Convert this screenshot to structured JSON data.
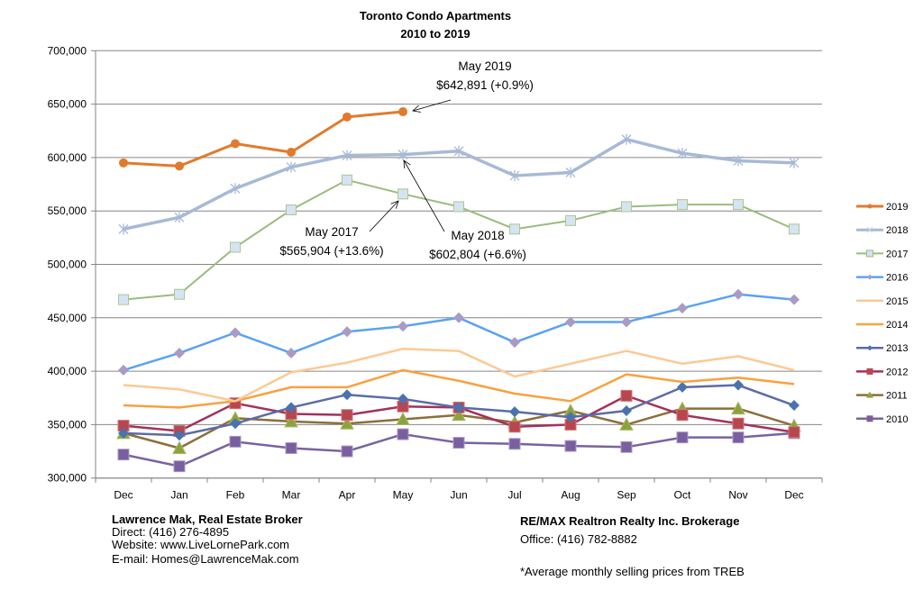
{
  "chart_data": {
    "type": "line",
    "title": "Toronto Condo Apartments",
    "subtitle": "2010 to 2019",
    "xlabel": "",
    "ylabel": "",
    "categories": [
      "Dec",
      "Jan",
      "Feb",
      "Mar",
      "Apr",
      "May",
      "Jun",
      "Jul",
      "Aug",
      "Sep",
      "Oct",
      "Nov",
      "Dec"
    ],
    "ylim": [
      300000,
      700000
    ],
    "yticks": [
      300000,
      350000,
      400000,
      450000,
      500000,
      550000,
      600000,
      650000,
      700000
    ],
    "ytick_labels": [
      "300,000",
      "350,000",
      "400,000",
      "450,000",
      "500,000",
      "550,000",
      "600,000",
      "650,000",
      "700,000"
    ],
    "grid": true,
    "legend_position": "right",
    "series": [
      {
        "name": "2019",
        "color": "#E07B2E",
        "marker": "circle",
        "width": 3,
        "values": [
          595000,
          592000,
          613000,
          605000,
          638000,
          642891,
          null,
          null,
          null,
          null,
          null,
          null,
          null
        ]
      },
      {
        "name": "2018",
        "color": "#A8B9D6",
        "marker": "star",
        "width": 3.5,
        "values": [
          533000,
          544000,
          571000,
          591000,
          602000,
          602804,
          606000,
          583000,
          586000,
          617000,
          604000,
          597000,
          595000
        ]
      },
      {
        "name": "2017",
        "color": "#9BBB7E",
        "marker": "square-light",
        "width": 2,
        "values": [
          467000,
          472000,
          516000,
          551000,
          579000,
          565904,
          554000,
          533000,
          541000,
          554000,
          556000,
          556000,
          533000
        ]
      },
      {
        "name": "2016",
        "color": "#5BA3F0",
        "marker": "diamond-purple",
        "width": 2.5,
        "values": [
          401000,
          417000,
          436000,
          417000,
          437000,
          442000,
          450000,
          427000,
          446000,
          446000,
          459000,
          472000,
          467000
        ]
      },
      {
        "name": "2015",
        "color": "#FBC994",
        "marker": "none",
        "width": 2.5,
        "values": [
          387000,
          383000,
          372000,
          399000,
          408000,
          421000,
          419000,
          395000,
          407000,
          419000,
          407000,
          414000,
          401000
        ]
      },
      {
        "name": "2014",
        "color": "#F9A03F",
        "marker": "none",
        "width": 2.5,
        "values": [
          368000,
          366000,
          372000,
          385000,
          385000,
          401000,
          391000,
          379000,
          372000,
          397000,
          390000,
          394000,
          388000
        ]
      },
      {
        "name": "2013",
        "color": "#5B6BA8",
        "marker": "diamond",
        "width": 2.5,
        "values": [
          342000,
          340000,
          351000,
          366000,
          378000,
          374000,
          366000,
          362000,
          357000,
          363000,
          385000,
          387000,
          368000
        ]
      },
      {
        "name": "2012",
        "color": "#A3315B",
        "marker": "square",
        "width": 2.5,
        "values": [
          349000,
          344000,
          370000,
          360000,
          359000,
          367000,
          366000,
          348000,
          350000,
          377000,
          359000,
          351000,
          343000
        ]
      },
      {
        "name": "2011",
        "color": "#8B6E3A",
        "marker": "triangle",
        "width": 2.5,
        "values": [
          342000,
          328000,
          356000,
          353000,
          351000,
          355000,
          359000,
          352000,
          363000,
          350000,
          365000,
          365000,
          349000
        ]
      },
      {
        "name": "2010",
        "color": "#7664A0",
        "marker": "square",
        "width": 2.5,
        "values": [
          322000,
          311000,
          334000,
          328000,
          325000,
          341000,
          333000,
          332000,
          330000,
          329000,
          338000,
          338000,
          342000
        ]
      }
    ],
    "annotations": [
      {
        "series": "2019",
        "point": "May",
        "line1": "May 2019",
        "line2": "$642,891 (+0.9%)"
      },
      {
        "series": "2017",
        "point": "May",
        "line1": "May 2017",
        "line2": "$565,904 (+13.6%)"
      },
      {
        "series": "2018",
        "point": "May",
        "line1": "May 2018",
        "line2": "$602,804 (+6.6%)"
      }
    ]
  },
  "footer": {
    "left": {
      "name": "Lawrence Mak, Real Estate Broker",
      "direct": "Direct:  (416) 276-4895",
      "website": "Website:  www.LiveLornePark.com",
      "email": "E-mail:  Homes@LawrenceMak.com"
    },
    "right": {
      "company": "RE/MAX Realtron Realty Inc. Brokerage",
      "office": "Office: (416) 782-8882",
      "note": "*Average monthly selling prices from TREB"
    }
  }
}
